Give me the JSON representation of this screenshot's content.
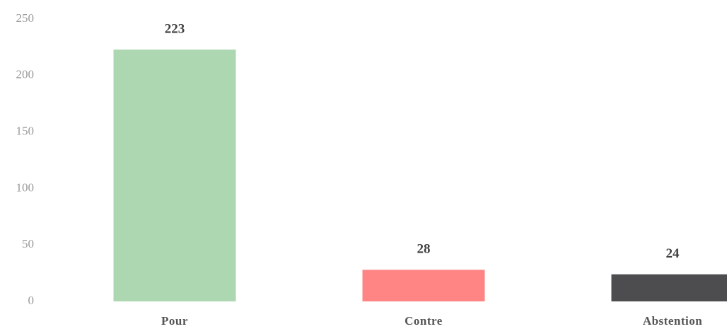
{
  "chart_data": {
    "type": "bar",
    "categories": [
      "Pour",
      "Contre",
      "Abstention"
    ],
    "values": [
      223,
      28,
      24
    ],
    "colors": [
      "#acd7b0",
      "#ff8585",
      "#4d4d4f"
    ],
    "ylim": [
      0,
      250
    ],
    "yticks": [
      0,
      50,
      100,
      150,
      200,
      250
    ],
    "grid": false
  }
}
